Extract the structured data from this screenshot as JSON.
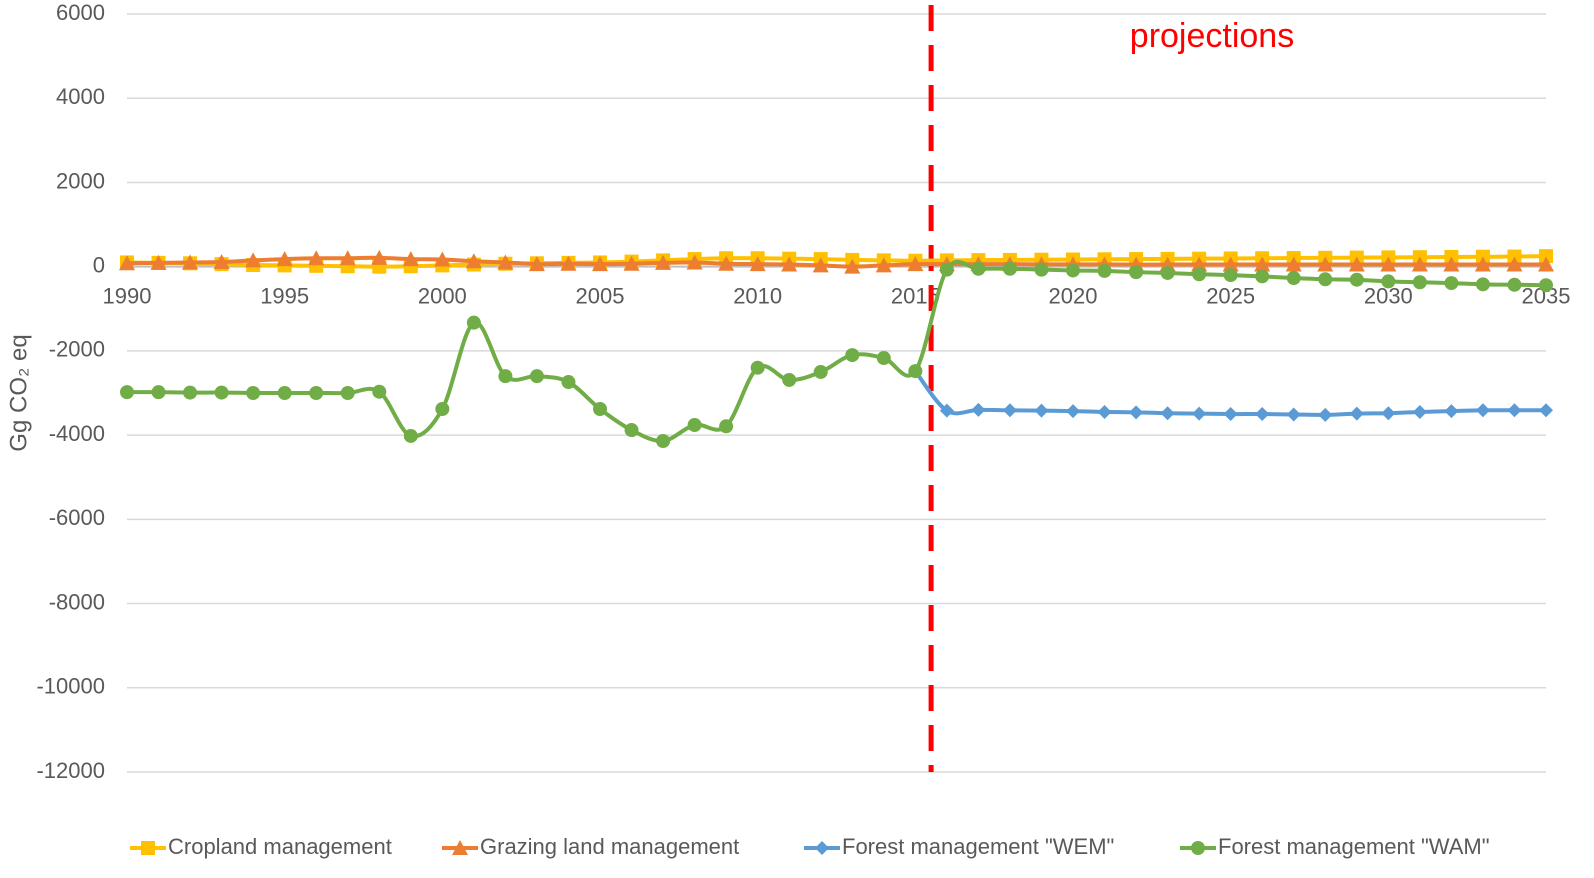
{
  "chart_data": {
    "type": "line",
    "y_label": "Gg CO₂ eq",
    "annotation": {
      "text": "projections",
      "x": 2015.5,
      "color": "#ff0000"
    },
    "x": [
      1990,
      1991,
      1992,
      1993,
      1994,
      1995,
      1996,
      1997,
      1998,
      1999,
      2000,
      2001,
      2002,
      2003,
      2004,
      2005,
      2006,
      2007,
      2008,
      2009,
      2010,
      2011,
      2012,
      2013,
      2014,
      2015,
      2016,
      2017,
      2018,
      2019,
      2020,
      2021,
      2022,
      2023,
      2024,
      2025,
      2026,
      2027,
      2028,
      2029,
      2030,
      2031,
      2032,
      2033,
      2034,
      2035
    ],
    "xlim": [
      1990,
      2035
    ],
    "xticks": [
      1990,
      1995,
      2000,
      2005,
      2010,
      2015,
      2020,
      2025,
      2030,
      2035
    ],
    "ylim": [
      -12000,
      6000
    ],
    "yticks": [
      6000,
      4000,
      2000,
      0,
      -2000,
      -4000,
      -6000,
      -8000,
      -10000,
      -12000
    ],
    "grid": true,
    "legend": "bottom",
    "series": [
      {
        "name": "Cropland management",
        "color": "#ffc000",
        "marker": "square",
        "values": [
          100,
          90,
          80,
          60,
          40,
          30,
          20,
          10,
          0,
          10,
          30,
          50,
          70,
          80,
          90,
          100,
          120,
          150,
          180,
          200,
          200,
          190,
          180,
          160,
          150,
          140,
          150,
          155,
          160,
          165,
          170,
          175,
          180,
          185,
          190,
          195,
          200,
          205,
          210,
          215,
          220,
          225,
          230,
          235,
          240,
          250
        ]
      },
      {
        "name": "Grazing land management",
        "color": "#ed7d31",
        "marker": "triangle",
        "values": [
          80,
          90,
          100,
          110,
          150,
          180,
          200,
          200,
          210,
          180,
          170,
          130,
          100,
          60,
          70,
          60,
          70,
          90,
          100,
          70,
          60,
          50,
          30,
          0,
          30,
          60,
          60,
          60,
          60,
          55,
          55,
          55,
          50,
          50,
          50,
          50,
          50,
          50,
          50,
          50,
          50,
          50,
          50,
          50,
          50,
          50
        ]
      },
      {
        "name": "Forest management \"WEM\"",
        "color": "#5b9bd5",
        "marker": "diamond",
        "values": [
          null,
          null,
          null,
          null,
          null,
          null,
          null,
          null,
          null,
          null,
          null,
          null,
          null,
          null,
          null,
          null,
          null,
          null,
          null,
          null,
          null,
          null,
          null,
          null,
          null,
          -2480,
          -3420,
          -3400,
          -3410,
          -3420,
          -3430,
          -3450,
          -3460,
          -3480,
          -3490,
          -3500,
          -3500,
          -3510,
          -3520,
          -3490,
          -3480,
          -3450,
          -3430,
          -3410,
          -3410,
          -3410
        ]
      },
      {
        "name": "Forest management \"WAM\"",
        "color": "#70ad47",
        "marker": "circle",
        "values": [
          -2980,
          -2980,
          -2990,
          -2990,
          -3000,
          -3000,
          -3000,
          -3000,
          -2970,
          -4020,
          -3380,
          -1330,
          -2600,
          -2600,
          -2740,
          -3380,
          -3880,
          -4140,
          -3760,
          -3790,
          -2400,
          -2690,
          -2500,
          -2100,
          -2170,
          -2480,
          -70,
          -50,
          -50,
          -70,
          -90,
          -100,
          -130,
          -150,
          -180,
          -200,
          -230,
          -270,
          -300,
          -310,
          -350,
          -370,
          -390,
          -420,
          -430,
          -440
        ]
      }
    ]
  }
}
